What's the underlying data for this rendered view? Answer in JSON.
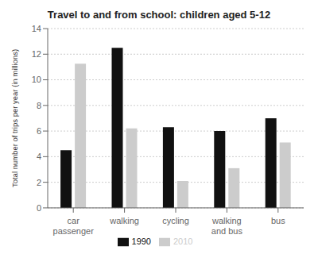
{
  "chart_data": {
    "type": "bar",
    "title": "Travel to and from school: children aged 5-12",
    "ylabel": "Total number of trips per year (in millions)",
    "categories": [
      "car\npassenger",
      "walking",
      "cycling",
      "walking\nand bus",
      "bus"
    ],
    "series": [
      {
        "name": "1990",
        "color": "#111111",
        "values": [
          4.5,
          12.5,
          6.3,
          6.0,
          7.0
        ]
      },
      {
        "name": "2010",
        "color": "#cccccc",
        "values": [
          11.25,
          6.2,
          2.1,
          3.1,
          5.1
        ]
      }
    ],
    "ylim": [
      0,
      14
    ],
    "yticks": [
      0,
      2,
      4,
      6,
      8,
      10,
      12,
      14
    ],
    "grid": true,
    "legend": "bottom"
  }
}
